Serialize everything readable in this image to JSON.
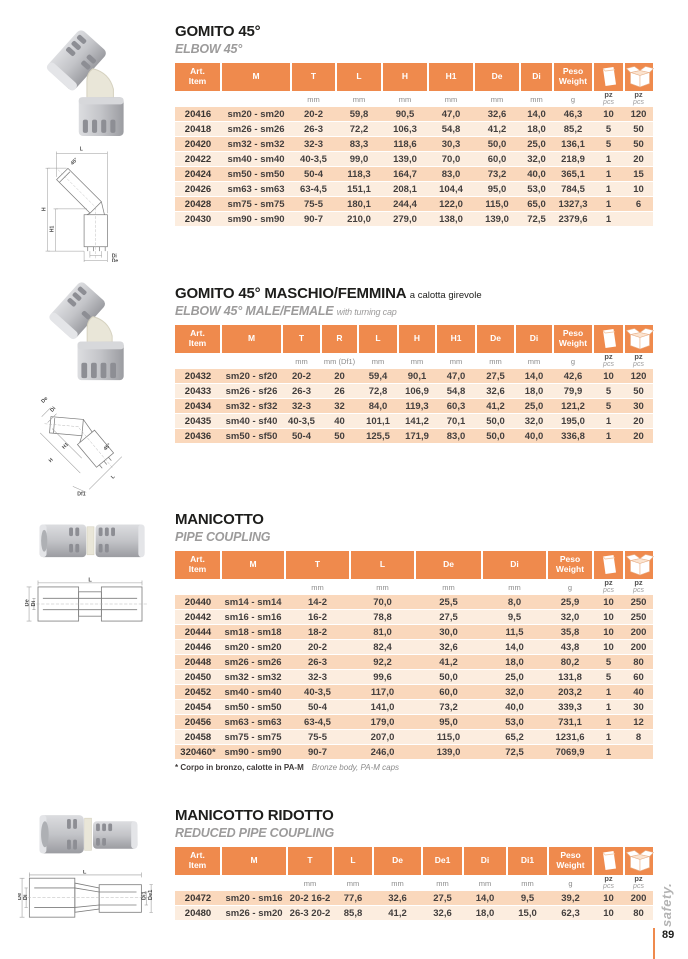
{
  "page": {
    "number": "89",
    "side_brand": "safety."
  },
  "colors": {
    "accent": "#EF8A4D",
    "row_dark": "#FAD8BC",
    "row_light": "#FCEDDF"
  },
  "sections": [
    {
      "title": "GOMITO 45°",
      "title_note": "",
      "subtitle": "ELBOW 45°",
      "subtitle_note": "",
      "diagram_labels": [
        "L",
        "45°",
        "H",
        "H1",
        "Di",
        "De"
      ],
      "headers": [
        "Art.|Item",
        "M",
        "T",
        "L",
        "H",
        "H1",
        "De",
        "Di",
        "Peso|Weight",
        "bag-icon",
        "box-icon"
      ],
      "units": [
        "",
        "",
        "mm",
        "mm",
        "mm",
        "mm",
        "mm",
        "mm",
        "g",
        "pz|pcs",
        "pz|pcs"
      ],
      "rows": [
        [
          "20416",
          "sm20 - sm20",
          "20-2",
          "59,8",
          "90,5",
          "47,0",
          "32,6",
          "14,0",
          "46,3",
          "10",
          "120"
        ],
        [
          "20418",
          "sm26 - sm26",
          "26-3",
          "72,2",
          "106,3",
          "54,8",
          "41,2",
          "18,0",
          "85,2",
          "5",
          "50"
        ],
        [
          "20420",
          "sm32 - sm32",
          "32-3",
          "83,3",
          "118,6",
          "30,3",
          "50,0",
          "25,0",
          "136,1",
          "5",
          "50"
        ],
        [
          "20422",
          "sm40 - sm40",
          "40-3,5",
          "99,0",
          "139,0",
          "70,0",
          "60,0",
          "32,0",
          "218,9",
          "1",
          "20"
        ],
        [
          "20424",
          "sm50 - sm50",
          "50-4",
          "118,3",
          "164,7",
          "83,0",
          "73,2",
          "40,0",
          "365,1",
          "1",
          "15"
        ],
        [
          "20426",
          "sm63 - sm63",
          "63-4,5",
          "151,1",
          "208,1",
          "104,4",
          "95,0",
          "53,0",
          "784,5",
          "1",
          "10"
        ],
        [
          "20428",
          "sm75 - sm75",
          "75-5",
          "180,1",
          "244,4",
          "122,0",
          "115,0",
          "65,0",
          "1327,3",
          "1",
          "6"
        ],
        [
          "20430",
          "sm90 - sm90",
          "90-7",
          "210,0",
          "279,0",
          "138,0",
          "139,0",
          "72,5",
          "2379,6",
          "1",
          ""
        ]
      ]
    },
    {
      "title": "GOMITO 45° MASCHIO/FEMMINA",
      "title_note": "a calotta girevole",
      "subtitle": "ELBOW 45° MALE/FEMALE",
      "subtitle_note": "with turning cap",
      "diagram_labels": [
        "De",
        "Di",
        "H1",
        "H",
        "45°",
        "Df1",
        "L"
      ],
      "headers": [
        "Art.|Item",
        "M",
        "T",
        "R",
        "L",
        "H",
        "H1",
        "De",
        "Di",
        "Peso|Weight",
        "bag-icon",
        "box-icon"
      ],
      "units": [
        "",
        "",
        "mm",
        "mm (Df1)",
        "mm",
        "mm",
        "mm",
        "mm",
        "mm",
        "g",
        "pz|pcs",
        "pz|pcs"
      ],
      "rows": [
        [
          "20432",
          "sm20 - sf20",
          "20-2",
          "20",
          "59,4",
          "90,1",
          "47,0",
          "27,5",
          "14,0",
          "42,6",
          "10",
          "120"
        ],
        [
          "20433",
          "sm26 - sf26",
          "26-3",
          "26",
          "72,8",
          "106,9",
          "54,8",
          "32,6",
          "18,0",
          "79,9",
          "5",
          "50"
        ],
        [
          "20434",
          "sm32 - sf32",
          "32-3",
          "32",
          "84,0",
          "119,3",
          "60,3",
          "41,2",
          "25,0",
          "121,2",
          "5",
          "30"
        ],
        [
          "20435",
          "sm40 - sf40",
          "40-3,5",
          "40",
          "101,1",
          "141,2",
          "70,1",
          "50,0",
          "32,0",
          "195,0",
          "1",
          "20"
        ],
        [
          "20436",
          "sm50 - sf50",
          "50-4",
          "50",
          "125,5",
          "171,9",
          "83,0",
          "50,0",
          "40,0",
          "336,8",
          "1",
          "20"
        ]
      ]
    },
    {
      "title": "MANICOTTO",
      "title_note": "",
      "subtitle": "PIPE COUPLING",
      "subtitle_note": "",
      "diagram_labels": [
        "L",
        "De",
        "Di"
      ],
      "headers": [
        "Art.|Item",
        "M",
        "T",
        "L",
        "De",
        "Di",
        "Peso|Weight",
        "bag-icon",
        "box-icon"
      ],
      "units": [
        "",
        "",
        "mm",
        "mm",
        "mm",
        "mm",
        "g",
        "pz|pcs",
        "pz|pcs"
      ],
      "rows": [
        [
          "20440",
          "sm14 - sm14",
          "14-2",
          "70,0",
          "25,5",
          "8,0",
          "25,9",
          "10",
          "250"
        ],
        [
          "20442",
          "sm16 - sm16",
          "16-2",
          "78,8",
          "27,5",
          "9,5",
          "32,0",
          "10",
          "250"
        ],
        [
          "20444",
          "sm18 - sm18",
          "18-2",
          "81,0",
          "30,0",
          "11,5",
          "35,8",
          "10",
          "200"
        ],
        [
          "20446",
          "sm20 - sm20",
          "20-2",
          "82,4",
          "32,6",
          "14,0",
          "43,8",
          "10",
          "200"
        ],
        [
          "20448",
          "sm26 - sm26",
          "26-3",
          "92,2",
          "41,2",
          "18,0",
          "80,2",
          "5",
          "80"
        ],
        [
          "20450",
          "sm32 - sm32",
          "32-3",
          "99,6",
          "50,0",
          "25,0",
          "131,8",
          "5",
          "60"
        ],
        [
          "20452",
          "sm40 - sm40",
          "40-3,5",
          "117,0",
          "60,0",
          "32,0",
          "203,2",
          "1",
          "40"
        ],
        [
          "20454",
          "sm50 - sm50",
          "50-4",
          "141,0",
          "73,2",
          "40,0",
          "339,3",
          "1",
          "30"
        ],
        [
          "20456",
          "sm63 - sm63",
          "63-4,5",
          "179,0",
          "95,0",
          "53,0",
          "731,1",
          "1",
          "12"
        ],
        [
          "20458",
          "sm75 - sm75",
          "75-5",
          "207,0",
          "115,0",
          "65,2",
          "1231,6",
          "1",
          "8"
        ],
        [
          "320460*",
          "sm90 - sm90",
          "90-7",
          "246,0",
          "139,0",
          "72,5",
          "7069,9",
          "1",
          ""
        ]
      ],
      "footnote": {
        "it": "* Corpo in bronzo, calotte in PA-M",
        "en": "Bronze body, PA-M caps"
      }
    },
    {
      "title": "MANICOTTO RIDOTTO",
      "title_note": "",
      "subtitle": "REDUCED PIPE COUPLING",
      "subtitle_note": "",
      "diagram_labels": [
        "L",
        "De",
        "Di",
        "Di1",
        "De1"
      ],
      "headers": [
        "Art.|Item",
        "M",
        "T",
        "L",
        "De",
        "De1",
        "Di",
        "Di1",
        "Peso|Weight",
        "bag-icon",
        "box-icon"
      ],
      "units": [
        "",
        "",
        "mm",
        "mm",
        "mm",
        "mm",
        "mm",
        "mm",
        "g",
        "pz|pcs",
        "pz|pcs"
      ],
      "rows": [
        [
          "20472",
          "sm20 - sm16",
          "20-2 16-2",
          "77,6",
          "32,6",
          "27,5",
          "14,0",
          "9,5",
          "39,2",
          "10",
          "200"
        ],
        [
          "20480",
          "sm26 - sm20",
          "26-3 20-2",
          "85,8",
          "41,2",
          "32,6",
          "18,0",
          "15,0",
          "62,3",
          "10",
          "80"
        ]
      ]
    }
  ]
}
